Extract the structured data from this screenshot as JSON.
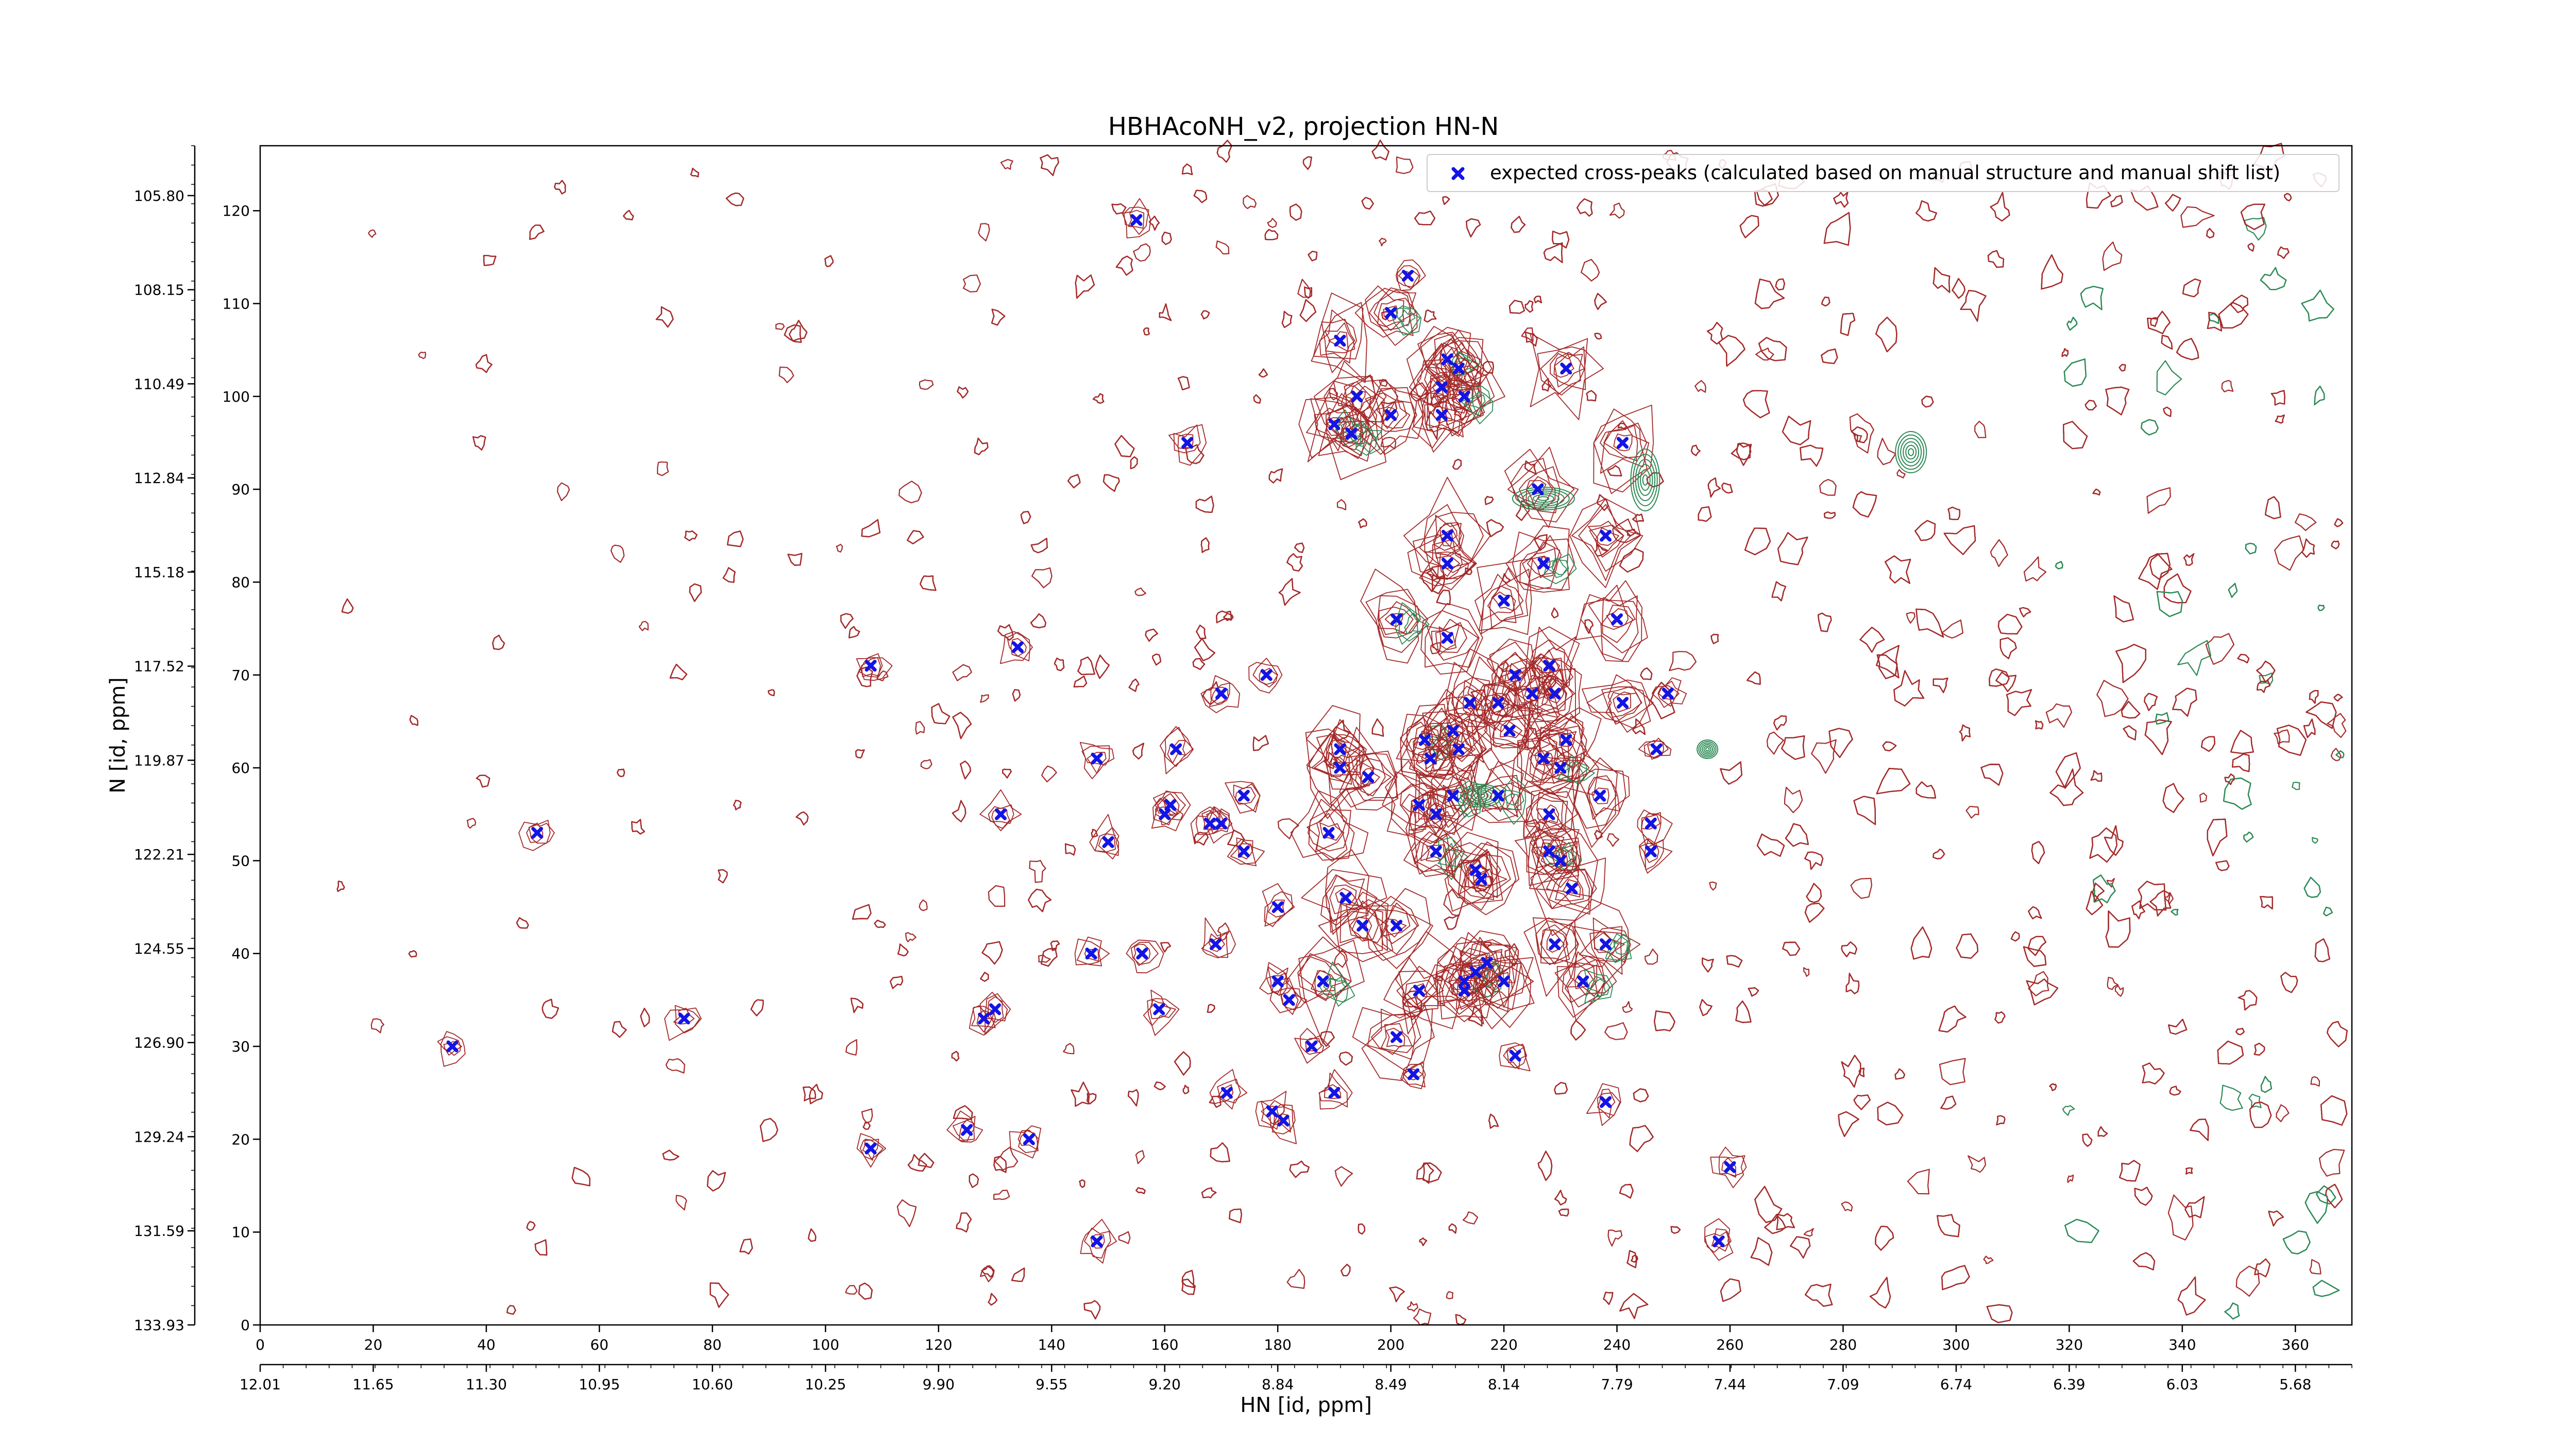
{
  "chart_data": {
    "type": "scatter",
    "title": "HBHAcoNH_v2, projection HN-N",
    "xlabel": "HN [id, ppm]",
    "ylabel": "N [id, ppm]",
    "x_index_range": [
      0,
      370
    ],
    "y_index_range": [
      0,
      127
    ],
    "x_index_ticks": [
      "0",
      "20",
      "40",
      "60",
      "80",
      "100",
      "120",
      "140",
      "160",
      "180",
      "200",
      "220",
      "240",
      "260",
      "280",
      "300",
      "320",
      "340",
      "360"
    ],
    "x_ppm_ticks": [
      "12.01",
      "11.65",
      "11.30",
      "10.95",
      "10.60",
      "10.25",
      "9.90",
      "9.55",
      "9.20",
      "8.84",
      "8.49",
      "8.14",
      "7.79",
      "7.44",
      "7.09",
      "6.74",
      "6.39",
      "6.03",
      "5.68"
    ],
    "y_index_ticks": [
      "0",
      "10",
      "20",
      "30",
      "40",
      "50",
      "60",
      "70",
      "80",
      "90",
      "100",
      "110",
      "120"
    ],
    "y_ppm_ticks": [
      "133.93",
      "131.59",
      "129.24",
      "126.90",
      "124.55",
      "122.21",
      "119.87",
      "117.52",
      "115.18",
      "112.84",
      "110.49",
      "108.15",
      "105.80"
    ],
    "legend_position": "top-right",
    "grid": false,
    "colors": {
      "marker": "#1414e6",
      "positive_contour": "#a52a2a",
      "negative_contour": "#2e8b57"
    },
    "series": [
      {
        "name": "expected cross-peaks (calculated based on manual structure and manual shift list)",
        "marker": "x",
        "points": [
          [
            34,
            30
          ],
          [
            49,
            53
          ],
          [
            75,
            33
          ],
          [
            108,
            71
          ],
          [
            108,
            19
          ],
          [
            125,
            21
          ],
          [
            128,
            33
          ],
          [
            130,
            34
          ],
          [
            131,
            55
          ],
          [
            134,
            73
          ],
          [
            136,
            20
          ],
          [
            147,
            40
          ],
          [
            148,
            61
          ],
          [
            148,
            9
          ],
          [
            150,
            52
          ],
          [
            155,
            119
          ],
          [
            156,
            40
          ],
          [
            159,
            34
          ],
          [
            160,
            55
          ],
          [
            161,
            56
          ],
          [
            162,
            62
          ],
          [
            164,
            95
          ],
          [
            168,
            54
          ],
          [
            170,
            54
          ],
          [
            169,
            41
          ],
          [
            170,
            68
          ],
          [
            171,
            25
          ],
          [
            174,
            57
          ],
          [
            174,
            51
          ],
          [
            178,
            70
          ],
          [
            179,
            23
          ],
          [
            180,
            45
          ],
          [
            180,
            37
          ],
          [
            181,
            22
          ],
          [
            182,
            35
          ],
          [
            186,
            30
          ],
          [
            188,
            37
          ],
          [
            189,
            53
          ],
          [
            190,
            25
          ],
          [
            191,
            106
          ],
          [
            190,
            97
          ],
          [
            191,
            62
          ],
          [
            191,
            60
          ],
          [
            192,
            46
          ],
          [
            193,
            96
          ],
          [
            194,
            100
          ],
          [
            196,
            59
          ],
          [
            195,
            43
          ],
          [
            200,
            109
          ],
          [
            200,
            98
          ],
          [
            201,
            43
          ],
          [
            201,
            31
          ],
          [
            201,
            76
          ],
          [
            203,
            113
          ],
          [
            204,
            27
          ],
          [
            205,
            36
          ],
          [
            206,
            63
          ],
          [
            205,
            56
          ],
          [
            207,
            61
          ],
          [
            208,
            55
          ],
          [
            208,
            51
          ],
          [
            209,
            101
          ],
          [
            209,
            98
          ],
          [
            210,
            74
          ],
          [
            210,
            104
          ],
          [
            210,
            85
          ],
          [
            210,
            82
          ],
          [
            211,
            64
          ],
          [
            211,
            57
          ],
          [
            212,
            103
          ],
          [
            212,
            62
          ],
          [
            213,
            36
          ],
          [
            213,
            100
          ],
          [
            214,
            67
          ],
          [
            213,
            37
          ],
          [
            215,
            49
          ],
          [
            215,
            38
          ],
          [
            216,
            48
          ],
          [
            217,
            39
          ],
          [
            219,
            67
          ],
          [
            219,
            57
          ],
          [
            220,
            78
          ],
          [
            220,
            37
          ],
          [
            221,
            64
          ],
          [
            222,
            29
          ],
          [
            222,
            70
          ],
          [
            225,
            68
          ],
          [
            226,
            90
          ],
          [
            227,
            82
          ],
          [
            227,
            61
          ],
          [
            228,
            71
          ],
          [
            228,
            55
          ],
          [
            228,
            51
          ],
          [
            229,
            68
          ],
          [
            229,
            41
          ],
          [
            230,
            50
          ],
          [
            230,
            60
          ],
          [
            231,
            63
          ],
          [
            231,
            103
          ],
          [
            232,
            47
          ],
          [
            234,
            37
          ],
          [
            237,
            57
          ],
          [
            238,
            85
          ],
          [
            238,
            24
          ],
          [
            238,
            41
          ],
          [
            240,
            76
          ],
          [
            241,
            67
          ],
          [
            241,
            95
          ],
          [
            246,
            54
          ],
          [
            246,
            51
          ],
          [
            247,
            62
          ],
          [
            249,
            68
          ],
          [
            258,
            9
          ],
          [
            260,
            17
          ]
        ]
      }
    ]
  }
}
